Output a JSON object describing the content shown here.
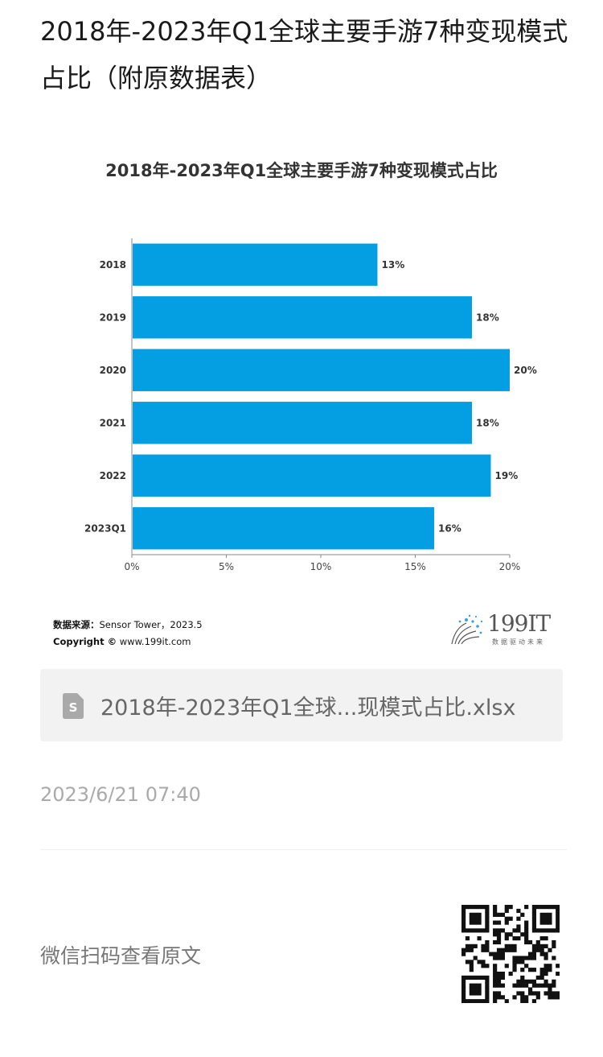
{
  "page": {
    "title": "2018年-2023年Q1全球主要手游7种变现模式占比（附原数据表）"
  },
  "chart_data": {
    "type": "bar",
    "orientation": "horizontal",
    "title": "2018年-2023年Q1全球主要手游7种变现模式占比",
    "categories": [
      "2018",
      "2019",
      "2020",
      "2021",
      "2022",
      "2023Q1"
    ],
    "values": [
      13,
      18,
      20,
      18,
      19,
      16
    ],
    "value_labels": [
      "13%",
      "18%",
      "20%",
      "18%",
      "19%",
      "16%"
    ],
    "x_ticks": [
      "0%",
      "5%",
      "10%",
      "15%",
      "20%"
    ],
    "xlim": [
      0,
      20
    ],
    "grid": false,
    "bar_color": "#049fe3"
  },
  "source": {
    "label": "数据来源：",
    "text": "Sensor Tower，2023.5",
    "copyright_label": "Copyright ©",
    "copyright_text": " www.199it.com"
  },
  "logo": {
    "text": "199IT",
    "sub": "数据驱动未来"
  },
  "attachment": {
    "icon": "document-s-icon",
    "file_name": "2018年-2023年Q1全球...现模式占比.xlsx"
  },
  "timestamp": "2023/6/21 07:40",
  "footer": {
    "scan_label": "微信扫码查看原文",
    "qr_icon": "qr-code"
  }
}
